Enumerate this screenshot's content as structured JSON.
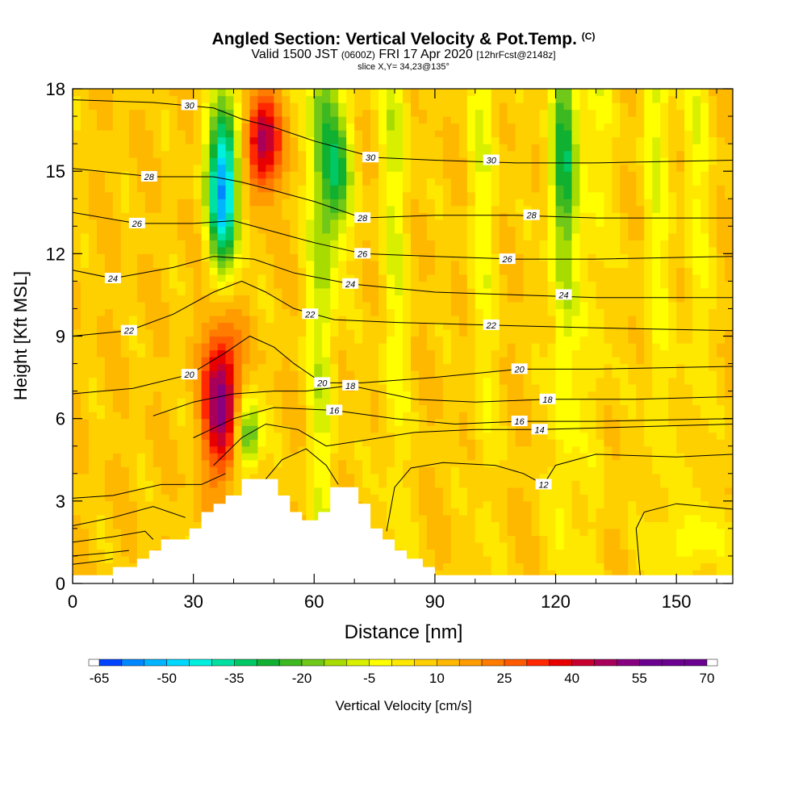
{
  "title": {
    "main": "Angled Section: Vertical Velocity & Pot.Temp.",
    "main_suffix": "(C)",
    "valid_prefix": "Valid 1500 JST",
    "valid_utc": "(0600Z)",
    "valid_date": "FRI 17 Apr 2020",
    "valid_fcst": "[12hrFcst@2148z]",
    "slice": "slice X,Y= 34,23@135°"
  },
  "chart_data": {
    "type": "heatmap",
    "xlabel": "Distance [nm]",
    "ylabel": "Height [Kft MSL]",
    "xlim": [
      0,
      164
    ],
    "ylim": [
      0,
      18
    ],
    "x_ticks": [
      0,
      30,
      60,
      90,
      120,
      150
    ],
    "y_ticks": [
      0,
      3,
      6,
      9,
      12,
      15,
      18
    ],
    "colorbar": {
      "label": "Vertical Velocity [cm/s]",
      "min": -65,
      "max": 70,
      "step": 5,
      "tick_labels": [
        -65,
        -50,
        -35,
        -20,
        -5,
        10,
        25,
        40,
        55,
        70
      ],
      "colors": [
        "#0000ff",
        "#0044ff",
        "#0088ff",
        "#00b4ff",
        "#00d8ff",
        "#00f0e0",
        "#00e0a0",
        "#00c864",
        "#10b030",
        "#3cb820",
        "#70c818",
        "#a8dc00",
        "#d8f000",
        "#ffff00",
        "#ffe800",
        "#ffd000",
        "#ffb800",
        "#ff9c00",
        "#ff7c00",
        "#ff5a00",
        "#ff2800",
        "#e80000",
        "#c80030",
        "#a8005a",
        "#880080",
        "#6c0090"
      ]
    },
    "terrain_kft": [
      [
        0,
        0.3
      ],
      [
        10,
        0.3
      ],
      [
        10,
        0.6
      ],
      [
        16,
        0.6
      ],
      [
        16,
        0.9
      ],
      [
        19,
        0.9
      ],
      [
        19,
        1.2
      ],
      [
        22,
        1.2
      ],
      [
        22,
        1.6
      ],
      [
        29,
        1.6
      ],
      [
        29,
        2.0
      ],
      [
        32,
        2.0
      ],
      [
        32,
        2.6
      ],
      [
        35,
        2.6
      ],
      [
        35,
        2.9
      ],
      [
        38,
        2.9
      ],
      [
        38,
        3.2
      ],
      [
        42,
        3.2
      ],
      [
        42,
        3.8
      ],
      [
        51,
        3.8
      ],
      [
        51,
        3.2
      ],
      [
        54,
        3.2
      ],
      [
        54,
        2.6
      ],
      [
        57,
        2.6
      ],
      [
        57,
        2.3
      ],
      [
        61,
        2.3
      ],
      [
        61,
        2.6
      ],
      [
        64,
        2.6
      ],
      [
        64,
        3.5
      ],
      [
        71,
        3.5
      ],
      [
        71,
        2.9
      ],
      [
        74,
        2.9
      ],
      [
        74,
        2.0
      ],
      [
        77,
        2.0
      ],
      [
        77,
        1.6
      ],
      [
        80,
        1.6
      ],
      [
        80,
        1.2
      ],
      [
        83,
        1.2
      ],
      [
        83,
        0.9
      ],
      [
        87,
        0.9
      ],
      [
        87,
        0.6
      ],
      [
        90,
        0.6
      ],
      [
        90,
        0.3
      ],
      [
        164,
        0.3
      ]
    ],
    "vertical_velocity_features": [
      {
        "type": "downdraft",
        "x": [
          33,
          42
        ],
        "y": [
          11,
          18
        ],
        "min": -65
      },
      {
        "type": "updraft",
        "x": [
          42,
          52
        ],
        "y": [
          14,
          18
        ],
        "max": 40
      },
      {
        "type": "updraft",
        "x": [
          32,
          42
        ],
        "y": [
          3.5,
          10
        ],
        "max": 45
      },
      {
        "type": "downdraft",
        "x": [
          40,
          47
        ],
        "y": [
          3.8,
          7
        ],
        "min": -35
      },
      {
        "type": "downdraft",
        "x": [
          62,
          70
        ],
        "y": [
          12,
          18
        ],
        "min": -30
      },
      {
        "type": "downdraft",
        "x": [
          118,
          126
        ],
        "y": [
          12,
          18
        ],
        "min": -15
      },
      {
        "type": "downdraft",
        "x": [
          144,
          164
        ],
        "y": [
          0.3,
          2.8
        ],
        "min": -10
      }
    ],
    "potential_temperature": {
      "units": "C",
      "labels": [
        {
          "text": "30",
          "x": 29,
          "y": 17.4
        },
        {
          "text": "30",
          "x": 74,
          "y": 15.5
        },
        {
          "text": "30",
          "x": 104,
          "y": 15.4
        },
        {
          "text": "28",
          "x": 19,
          "y": 14.8
        },
        {
          "text": "28",
          "x": 72,
          "y": 13.3
        },
        {
          "text": "28",
          "x": 114,
          "y": 13.4
        },
        {
          "text": "26",
          "x": 16,
          "y": 13.1
        },
        {
          "text": "26",
          "x": 72,
          "y": 12.0
        },
        {
          "text": "26",
          "x": 108,
          "y": 11.8
        },
        {
          "text": "24",
          "x": 10,
          "y": 11.1
        },
        {
          "text": "24",
          "x": 69,
          "y": 10.9
        },
        {
          "text": "24",
          "x": 122,
          "y": 10.5
        },
        {
          "text": "22",
          "x": 14,
          "y": 9.2
        },
        {
          "text": "22",
          "x": 59,
          "y": 9.8
        },
        {
          "text": "22",
          "x": 104,
          "y": 9.4
        },
        {
          "text": "20",
          "x": 29,
          "y": 7.6
        },
        {
          "text": "20",
          "x": 62,
          "y": 7.3
        },
        {
          "text": "20",
          "x": 111,
          "y": 7.8
        },
        {
          "text": "18",
          "x": 69,
          "y": 7.2
        },
        {
          "text": "18",
          "x": 118,
          "y": 6.7
        },
        {
          "text": "16",
          "x": 65,
          "y": 6.3
        },
        {
          "text": "16",
          "x": 111,
          "y": 5.9
        },
        {
          "text": "14",
          "x": 116,
          "y": 5.6
        },
        {
          "text": "12",
          "x": 117,
          "y": 3.6
        }
      ],
      "isentropes": [
        [
          [
            0,
            17.6
          ],
          [
            20,
            17.5
          ],
          [
            35,
            17.3
          ],
          [
            42,
            16.9
          ],
          [
            50,
            16.6
          ],
          [
            60,
            16.1
          ],
          [
            75,
            15.5
          ],
          [
            90,
            15.4
          ],
          [
            110,
            15.3
          ],
          [
            130,
            15.3
          ],
          [
            164,
            15.4
          ]
        ],
        [
          [
            0,
            15.1
          ],
          [
            20,
            14.8
          ],
          [
            35,
            14.8
          ],
          [
            42,
            14.6
          ],
          [
            50,
            14.3
          ],
          [
            60,
            13.9
          ],
          [
            72,
            13.3
          ],
          [
            90,
            13.4
          ],
          [
            110,
            13.4
          ],
          [
            130,
            13.3
          ],
          [
            164,
            13.3
          ]
        ],
        [
          [
            0,
            13.5
          ],
          [
            16,
            13.1
          ],
          [
            30,
            13.1
          ],
          [
            40,
            13.2
          ],
          [
            50,
            12.8
          ],
          [
            60,
            12.4
          ],
          [
            72,
            12.0
          ],
          [
            90,
            11.9
          ],
          [
            110,
            11.8
          ],
          [
            130,
            11.8
          ],
          [
            164,
            11.9
          ]
        ],
        [
          [
            0,
            11.4
          ],
          [
            10,
            11.1
          ],
          [
            25,
            11.5
          ],
          [
            35,
            11.9
          ],
          [
            45,
            11.8
          ],
          [
            55,
            11.3
          ],
          [
            69,
            10.9
          ],
          [
            90,
            10.6
          ],
          [
            110,
            10.5
          ],
          [
            130,
            10.4
          ],
          [
            164,
            10.4
          ]
        ],
        [
          [
            0,
            9.0
          ],
          [
            14,
            9.2
          ],
          [
            25,
            9.8
          ],
          [
            35,
            10.6
          ],
          [
            42,
            11.0
          ],
          [
            48,
            10.6
          ],
          [
            55,
            10.0
          ],
          [
            65,
            9.6
          ],
          [
            80,
            9.5
          ],
          [
            104,
            9.4
          ],
          [
            130,
            9.3
          ],
          [
            164,
            9.2
          ]
        ],
        [
          [
            0,
            6.9
          ],
          [
            15,
            7.1
          ],
          [
            29,
            7.6
          ],
          [
            38,
            8.4
          ],
          [
            44,
            9.0
          ],
          [
            50,
            8.6
          ],
          [
            55,
            8.0
          ],
          [
            62,
            7.3
          ],
          [
            72,
            7.3
          ],
          [
            90,
            7.5
          ],
          [
            111,
            7.8
          ],
          [
            130,
            7.8
          ],
          [
            164,
            7.9
          ]
        ],
        [
          [
            20,
            6.1
          ],
          [
            30,
            6.6
          ],
          [
            40,
            6.9
          ],
          [
            50,
            7.0
          ],
          [
            58,
            7.0
          ],
          [
            69,
            7.2
          ],
          [
            85,
            6.7
          ],
          [
            100,
            6.6
          ],
          [
            118,
            6.7
          ],
          [
            140,
            6.7
          ],
          [
            164,
            6.8
          ]
        ],
        [
          [
            30,
            5.3
          ],
          [
            40,
            6.0
          ],
          [
            50,
            6.4
          ],
          [
            65,
            6.3
          ],
          [
            80,
            6.0
          ],
          [
            95,
            5.8
          ],
          [
            111,
            5.9
          ],
          [
            130,
            5.9
          ],
          [
            164,
            6.0
          ]
        ],
        [
          [
            35,
            4.3
          ],
          [
            42,
            5.3
          ],
          [
            48,
            5.8
          ],
          [
            56,
            5.6
          ],
          [
            63,
            5.0
          ],
          [
            72,
            5.2
          ],
          [
            85,
            5.5
          ],
          [
            100,
            5.6
          ],
          [
            116,
            5.6
          ],
          [
            140,
            5.7
          ],
          [
            164,
            5.8
          ]
        ],
        [
          [
            0,
            3.1
          ],
          [
            10,
            3.2
          ],
          [
            22,
            3.6
          ],
          [
            32,
            3.6
          ],
          [
            38,
            4.0
          ]
        ],
        [
          [
            0,
            2.1
          ],
          [
            10,
            2.4
          ],
          [
            20,
            2.8
          ],
          [
            28,
            2.4
          ]
        ],
        [
          [
            0,
            1.5
          ],
          [
            10,
            1.7
          ],
          [
            18,
            1.9
          ],
          [
            20,
            1.6
          ]
        ],
        [
          [
            0,
            1.0
          ],
          [
            8,
            1.1
          ],
          [
            14,
            1.2
          ]
        ],
        [
          [
            0,
            0.7
          ],
          [
            6,
            0.8
          ],
          [
            10,
            0.9
          ]
        ],
        [
          [
            78,
            1.9
          ],
          [
            80,
            3.5
          ],
          [
            84,
            4.2
          ],
          [
            92,
            4.4
          ],
          [
            105,
            4.3
          ],
          [
            112,
            4.0
          ],
          [
            117,
            3.6
          ],
          [
            120,
            4.3
          ],
          [
            130,
            4.7
          ],
          [
            150,
            4.6
          ],
          [
            164,
            4.7
          ]
        ],
        [
          [
            48,
            3.8
          ],
          [
            52,
            4.5
          ],
          [
            58,
            4.9
          ],
          [
            63,
            4.3
          ],
          [
            66,
            3.6
          ]
        ],
        [
          [
            164,
            2.7
          ],
          [
            150,
            2.9
          ],
          [
            142,
            2.6
          ],
          [
            140,
            2.0
          ],
          [
            141,
            0.3
          ]
        ]
      ]
    }
  }
}
